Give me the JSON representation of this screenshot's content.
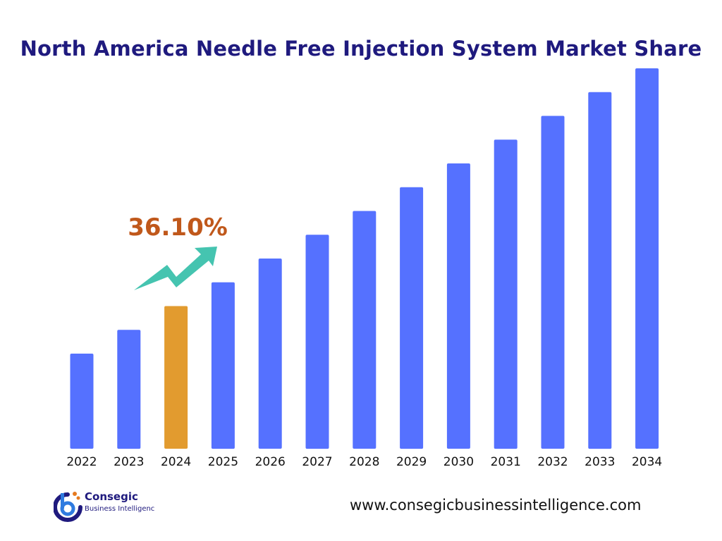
{
  "title": "North America Needle Free Injection System Market Share",
  "callout": {
    "text": "36.10%",
    "color": "#c0581b",
    "arrow_color": "#45c4b0"
  },
  "colors": {
    "bar": "#5571ff",
    "highlight": "#e29b2f"
  },
  "logo": {
    "name": "Consegic",
    "subtitle": "Business Intelligenc"
  },
  "website": "www.consegicbusinessintelligence.com",
  "chart_data": {
    "type": "bar",
    "categories": [
      "2022",
      "2023",
      "2024",
      "2025",
      "2026",
      "2027",
      "2028",
      "2029",
      "2030",
      "2031",
      "2032",
      "2033",
      "2034"
    ],
    "values": [
      1.0,
      1.25,
      1.5,
      1.75,
      2.0,
      2.25,
      2.5,
      2.75,
      3.0,
      3.25,
      3.5,
      3.75,
      4.0
    ],
    "highlight_category": "2024",
    "title": "North America Needle Free Injection System Market Share",
    "xlabel": "",
    "ylabel": "",
    "ylim": [
      0,
      4.0
    ],
    "grid": false,
    "legend": "none"
  }
}
